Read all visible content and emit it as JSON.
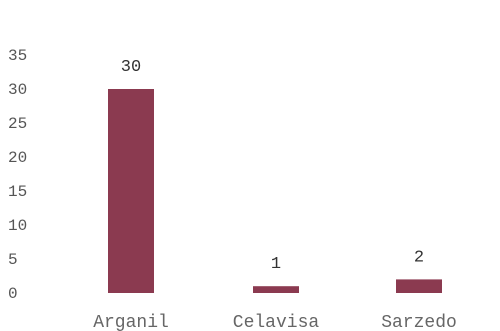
{
  "chart_data": {
    "type": "bar",
    "categories": [
      "Arganil",
      "Celavisa",
      "Sarzedo"
    ],
    "values": [
      30,
      1,
      2
    ],
    "data_labels": [
      "30",
      "1",
      "2"
    ],
    "yticks": [
      "0",
      "5",
      "10",
      "15",
      "20",
      "25",
      "30",
      "35"
    ],
    "ytick_values": [
      0,
      5,
      10,
      15,
      20,
      25,
      30,
      35
    ],
    "ylim": [
      0,
      35
    ],
    "bar_color": "#8b3a50",
    "grid": false,
    "legend": "none"
  }
}
